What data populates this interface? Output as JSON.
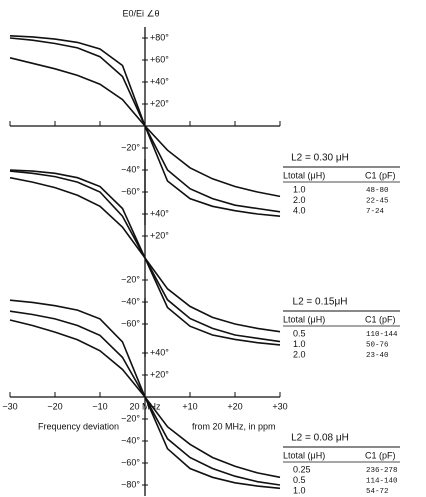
{
  "chart_data": [
    {
      "type": "line",
      "ylabel": "E0/Ei ∠θ",
      "xaxis": true,
      "legend_title": "L2 = 0.30 μH",
      "legend_headers": [
        "Ltotal (μH)",
        "C1 (pF)"
      ],
      "x": [
        -30,
        -25,
        -20,
        -15,
        -10,
        -5,
        0,
        5,
        10,
        15,
        20,
        25,
        30
      ],
      "xlim": [
        -30,
        30
      ],
      "ylim": [
        -90,
        90
      ],
      "yticks": [
        {
          "value": 80,
          "label": "+80°"
        },
        {
          "value": 60,
          "label": "+60°"
        },
        {
          "value": 40,
          "label": "+40°"
        },
        {
          "value": 20,
          "label": "+20°"
        },
        {
          "value": -20,
          "label": "−20°"
        },
        {
          "value": -40,
          "label": "−40°"
        },
        {
          "value": -60,
          "label": "−60°"
        }
      ],
      "series": [
        {
          "name": "1.0",
          "c1": "48-80",
          "color": "#111",
          "values": [
            82,
            81,
            79,
            76,
            70,
            55,
            0,
            -50,
            -66,
            -73,
            -77,
            -80,
            -82
          ]
        },
        {
          "name": "2.0",
          "c1": "22-45",
          "color": "#111",
          "values": [
            80,
            78,
            75,
            71,
            63,
            45,
            0,
            -40,
            -57,
            -66,
            -72,
            -75,
            -78
          ]
        },
        {
          "name": "4.0",
          "c1": "7-24",
          "color": "#111",
          "values": [
            62,
            57,
            52,
            46,
            38,
            24,
            0,
            -22,
            -38,
            -48,
            -55,
            -60,
            -64
          ]
        }
      ]
    },
    {
      "type": "line",
      "xaxis": false,
      "legend_title": "L2 = 0.15μH",
      "legend_headers": [
        "Ltotal (μH)",
        "C1 (pF)"
      ],
      "x": [
        -30,
        -25,
        -20,
        -15,
        -10,
        -5,
        0,
        5,
        10,
        15,
        20,
        25,
        30
      ],
      "xlim": [
        -30,
        30
      ],
      "ylim": [
        -90,
        90
      ],
      "yticks": [
        {
          "value": 40,
          "label": "+40°"
        },
        {
          "value": 20,
          "label": "+20°"
        },
        {
          "value": -20,
          "label": "−20°"
        },
        {
          "value": -40,
          "label": "−40°"
        },
        {
          "value": -60,
          "label": "−60°"
        }
      ],
      "series": [
        {
          "name": "0.5",
          "c1": "110-144",
          "color": "#111",
          "values": [
            80,
            79,
            77,
            73,
            65,
            45,
            0,
            -45,
            -62,
            -70,
            -74,
            -77,
            -79
          ]
        },
        {
          "name": "1.0",
          "c1": "50-76",
          "color": "#111",
          "values": [
            79,
            77,
            74,
            69,
            60,
            38,
            0,
            -38,
            -55,
            -64,
            -70,
            -73,
            -76
          ]
        },
        {
          "name": "2.0",
          "c1": "23-40",
          "color": "#111",
          "values": [
            73,
            69,
            64,
            57,
            47,
            28,
            0,
            -28,
            -44,
            -54,
            -60,
            -64,
            -67
          ]
        }
      ]
    },
    {
      "type": "line",
      "xaxis": true,
      "xlabel": [
        "Frequency deviation",
        "from 20 MHz, in ppm"
      ],
      "legend_title": "L2 = 0.08 μH",
      "legend_headers": [
        "Ltotal (μH)",
        "C1 (pF)"
      ],
      "x": [
        -30,
        -25,
        -20,
        -15,
        -10,
        -5,
        0,
        5,
        10,
        15,
        20,
        25,
        30
      ],
      "xlim": [
        -30,
        30
      ],
      "ylim": [
        -90,
        90
      ],
      "xticks": [
        {
          "value": -30,
          "label": "−30"
        },
        {
          "value": -20,
          "label": "−20"
        },
        {
          "value": -10,
          "label": "−10"
        },
        {
          "value": 0,
          "label": "20 MHz"
        },
        {
          "value": 10,
          "label": "+10"
        },
        {
          "value": 20,
          "label": "+20"
        },
        {
          "value": 30,
          "label": "+30"
        }
      ],
      "yticks": [
        {
          "value": 40,
          "label": "+40°"
        },
        {
          "value": 20,
          "label": "+20°"
        },
        {
          "value": -20,
          "label": "−20°"
        },
        {
          "value": -40,
          "label": "−40°"
        },
        {
          "value": -60,
          "label": "−60°"
        },
        {
          "value": -80,
          "label": "−80°"
        }
      ],
      "series": [
        {
          "name": "0.25",
          "c1": "236-278",
          "color": "#111",
          "values": [
            88,
            86,
            83,
            79,
            71,
            50,
            0,
            -47,
            -65,
            -73,
            -78,
            -81,
            -83
          ]
        },
        {
          "name": "0.5",
          "c1": "114-140",
          "color": "#111",
          "values": [
            78,
            75,
            71,
            65,
            56,
            36,
            0,
            -38,
            -55,
            -65,
            -72,
            -77,
            -80
          ]
        },
        {
          "name": "1.0",
          "c1": "54-72",
          "color": "#111",
          "values": [
            70,
            65,
            59,
            52,
            42,
            25,
            0,
            -27,
            -43,
            -55,
            -63,
            -69,
            -73
          ]
        }
      ]
    }
  ]
}
